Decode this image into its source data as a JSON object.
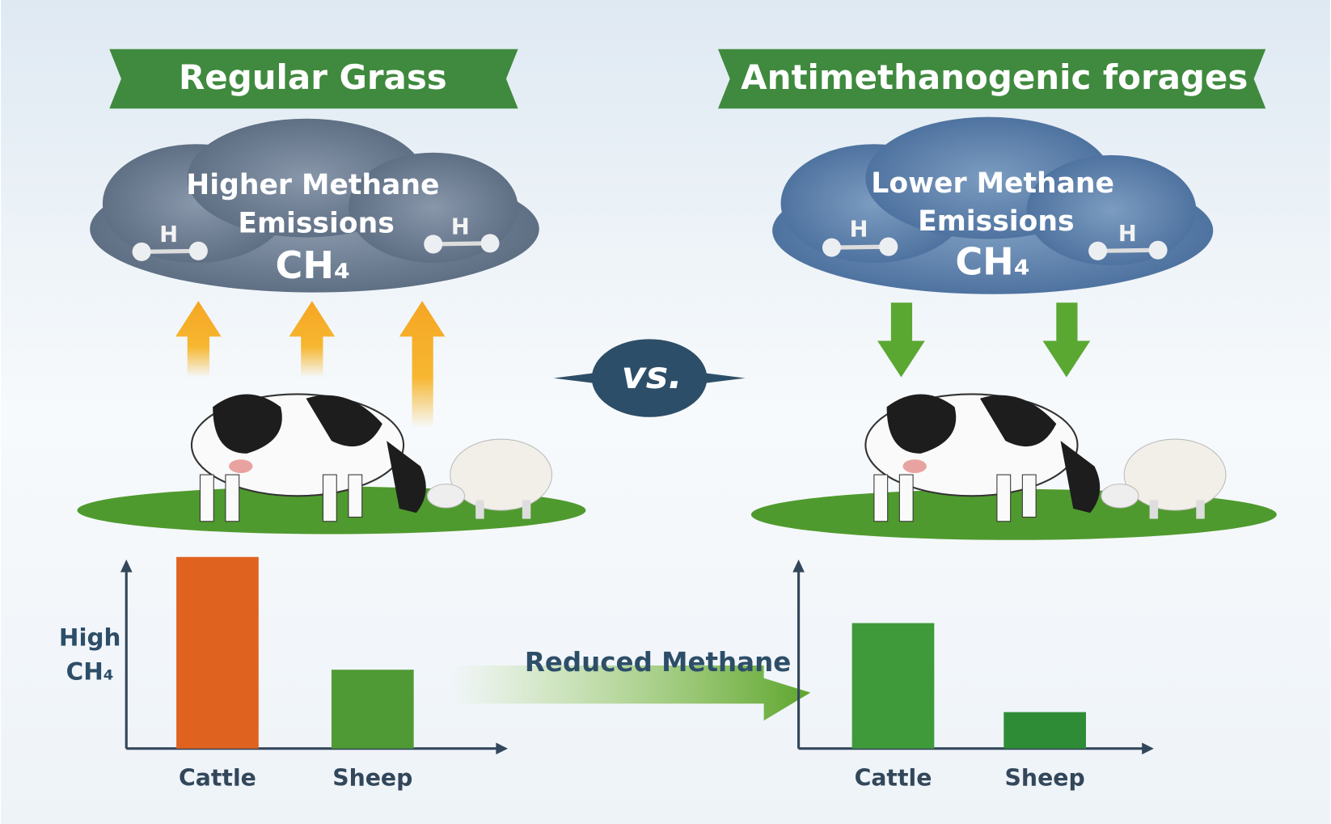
{
  "panels": [
    {
      "banner": "Regular Grass",
      "cloud_lines": [
        "Higher Methane",
        "Emissions"
      ],
      "formula": "CH₄",
      "chart": {
        "type": "bar",
        "axis_label": "High CH₄",
        "categories": [
          "Cattle",
          "Sheep"
        ],
        "values": [
          226,
          93
        ],
        "colors": [
          "#e0621f",
          "#4f9a35"
        ],
        "ylim": [
          0,
          240
        ]
      }
    },
    {
      "banner": "Antimethanogenic forages",
      "cloud_lines": [
        "Lower Methane",
        "Emissions"
      ],
      "formula": "CH₄",
      "chart": {
        "type": "bar",
        "categories": [
          "Cattle",
          "Sheep"
        ],
        "values": [
          148,
          43
        ],
        "colors": [
          "#3f9a3a",
          "#2f8c36"
        ],
        "ylim": [
          0,
          240
        ]
      }
    }
  ],
  "molecule_label": "H",
  "versus": "vs.",
  "transition": "Reduced Methane"
}
